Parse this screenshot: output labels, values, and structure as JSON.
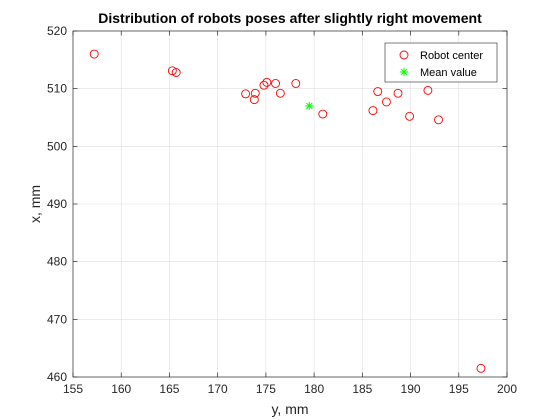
{
  "chart_data": {
    "type": "scatter",
    "title": "Distribution of robots poses after slightly right movement",
    "xlabel": "y, mm",
    "ylabel": "x, mm",
    "xlim": [
      155,
      200
    ],
    "ylim": [
      460,
      520
    ],
    "xticks": [
      155,
      160,
      165,
      170,
      175,
      180,
      185,
      190,
      195,
      200
    ],
    "yticks": [
      460,
      470,
      480,
      490,
      500,
      510,
      520
    ],
    "grid": true,
    "legend_position": "top-right",
    "series": [
      {
        "name": "Robot center",
        "marker": "circle",
        "color": "#ff0000",
        "points": [
          {
            "x": 157.2,
            "y": 516.0
          },
          {
            "x": 165.3,
            "y": 513.1
          },
          {
            "x": 165.7,
            "y": 512.8
          },
          {
            "x": 172.9,
            "y": 509.1
          },
          {
            "x": 173.8,
            "y": 508.1
          },
          {
            "x": 173.9,
            "y": 509.2
          },
          {
            "x": 174.8,
            "y": 510.6
          },
          {
            "x": 175.1,
            "y": 511.1
          },
          {
            "x": 176.0,
            "y": 510.9
          },
          {
            "x": 176.5,
            "y": 509.2
          },
          {
            "x": 178.1,
            "y": 510.9
          },
          {
            "x": 180.9,
            "y": 505.6
          },
          {
            "x": 186.1,
            "y": 506.2
          },
          {
            "x": 186.6,
            "y": 509.5
          },
          {
            "x": 187.5,
            "y": 507.7
          },
          {
            "x": 188.7,
            "y": 509.2
          },
          {
            "x": 189.9,
            "y": 505.2
          },
          {
            "x": 191.8,
            "y": 509.7
          },
          {
            "x": 192.9,
            "y": 504.6
          },
          {
            "x": 197.3,
            "y": 461.5
          }
        ]
      },
      {
        "name": "Mean value",
        "marker": "asterisk",
        "color": "#00ff00",
        "points": [
          {
            "x": 179.5,
            "y": 507.0
          }
        ]
      }
    ]
  }
}
